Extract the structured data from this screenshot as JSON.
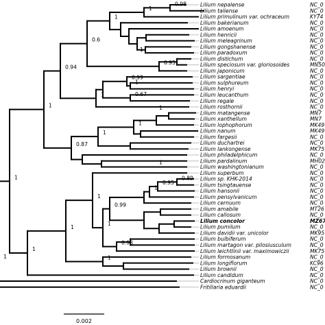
{
  "taxa": [
    {
      "name": "Lilium nepalense",
      "acc": "NC_0"
    },
    {
      "name": "Lilium taliense",
      "acc": "NC_0"
    },
    {
      "name": "Lilium primulinum var. ochraceum",
      "acc": "KY74"
    },
    {
      "name": "Lilium bakerianum",
      "acc": "NC_0"
    },
    {
      "name": "Lilium amoenum",
      "acc": "NC_0"
    },
    {
      "name": "Lilium henricii",
      "acc": "NC_0"
    },
    {
      "name": "Lilium meleagrinum",
      "acc": "NC_0"
    },
    {
      "name": "Lilium gongshanense",
      "acc": "NC_0"
    },
    {
      "name": "Lilium paradoxum",
      "acc": "NC_0"
    },
    {
      "name": "Lilium distichum",
      "acc": "NC_0"
    },
    {
      "name": "Lilium speciosum var. gloriosoides",
      "acc": "MN50"
    },
    {
      "name": "Lilium japonicum",
      "acc": "NC_0"
    },
    {
      "name": "Lilium sargentiae",
      "acc": "NC_0"
    },
    {
      "name": "Lilium sulphureum",
      "acc": "NC_0"
    },
    {
      "name": "Lilium henryi",
      "acc": "NC_0"
    },
    {
      "name": "Lilium leucanthum",
      "acc": "NC_0"
    },
    {
      "name": "Lilium regale",
      "acc": "NC_0"
    },
    {
      "name": "Lilium rosthornii",
      "acc": "NC_0"
    },
    {
      "name": "Lilium matangense",
      "acc": "MN7"
    },
    {
      "name": "Lilium xanthellum",
      "acc": "MN7"
    },
    {
      "name": "Lilium lophophorum",
      "acc": "MK49"
    },
    {
      "name": "Lilium nanum",
      "acc": "MK49"
    },
    {
      "name": "Lilium fargesii",
      "acc": "NC_0"
    },
    {
      "name": "Lilium duchartrei",
      "acc": "NC_0"
    },
    {
      "name": "Lilium lankongense",
      "acc": "MK75"
    },
    {
      "name": "Lilium philadelphicum",
      "acc": "NC_0"
    },
    {
      "name": "Lilium pardalinum",
      "acc": "MH02"
    },
    {
      "name": "Lilium washingtonianum",
      "acc": "NC_0"
    },
    {
      "name": "Lilium superbum",
      "acc": "NC_0"
    },
    {
      "name": "Lilium sp. KHK-2014",
      "acc": "NC_0"
    },
    {
      "name": "Lilium tsingtauense",
      "acc": "NC_0"
    },
    {
      "name": "Lilium hansonii",
      "acc": "NC_0"
    },
    {
      "name": "Lilium pensylvanicum",
      "acc": "NC_0"
    },
    {
      "name": "Lilium cernuum",
      "acc": "NC_0"
    },
    {
      "name": "Lilium amabile",
      "acc": "MT26"
    },
    {
      "name": "Lilium callosum",
      "acc": "NC_0"
    },
    {
      "name": "Lilium concolor",
      "acc": "MZ67",
      "highlight": true
    },
    {
      "name": "Lilium pumilum",
      "acc": "NC_0"
    },
    {
      "name": "Lilium davidii var. unicolor",
      "acc": "MK95"
    },
    {
      "name": "Lilium bulbiferum",
      "acc": "NC_0"
    },
    {
      "name": "Lilium martagon var. pilosiusculum",
      "acc": "NC_0"
    },
    {
      "name": "Lilium leichtlinii var. maximowiczii",
      "acc": "MK75"
    },
    {
      "name": "Lilium formosanum",
      "acc": "NC_0"
    },
    {
      "name": "Lilium longiflorum",
      "acc": "KC96"
    },
    {
      "name": "Lilium brownii",
      "acc": "NC_0"
    },
    {
      "name": "Lilium candidum",
      "acc": "NC_0"
    },
    {
      "name": "Cardiocrinum giganteum",
      "acc": "NC_0"
    },
    {
      "name": "Fritillaria eduardii",
      "acc": "NC_0"
    }
  ],
  "supports": [
    "0.98",
    "1",
    "1",
    "0.6",
    "1",
    "0.95",
    "0.94",
    "0.99",
    "1",
    "0.67",
    "1",
    "1",
    "1",
    "0.87",
    "1",
    "1",
    "1",
    "0.89",
    "0.95",
    "1",
    "1",
    "0.99",
    "1",
    "0.98",
    "1",
    "1",
    "1",
    "1",
    "1"
  ],
  "scale_bar": {
    "label": "0.002"
  }
}
